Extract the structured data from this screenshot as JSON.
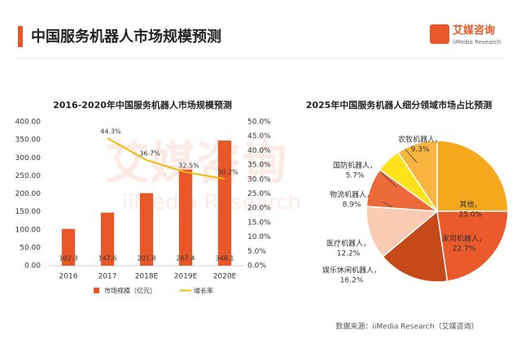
{
  "header": {
    "title": "中国服务机器人市场规模预测",
    "logo": "艾媒咨询",
    "logo_sub": "iiMedia Research"
  },
  "watermark": {
    "text": "艾媒咨询",
    "sub": "iiMedia Research"
  },
  "chart_data": [
    {
      "type": "bar",
      "title": "2016-2020年中国服务机器人市场规模预测",
      "categories": [
        "2016",
        "2017",
        "2018E",
        "2019E",
        "2020E"
      ],
      "series": [
        {
          "name": "市场规模（亿元）",
          "type": "bar",
          "color": "#e8572a",
          "values": [
            102.3,
            147.6,
            201.8,
            267.4,
            348.1
          ]
        },
        {
          "name": "增长率",
          "type": "line",
          "axis": "y2",
          "color": "#f5b800",
          "values": [
            null,
            44.3,
            36.7,
            32.5,
            30.2
          ],
          "value_labels": [
            null,
            "44.3%",
            "36.7%",
            "32.5%",
            "30.2%"
          ]
        }
      ],
      "ylim": [
        0,
        400
      ],
      "yticks": [
        {
          "value": 0,
          "label": "0.00"
        },
        {
          "value": 50,
          "label": "50.00"
        },
        {
          "value": 100,
          "label": "100.00"
        },
        {
          "value": 150,
          "label": "150.00"
        },
        {
          "value": 200,
          "label": "200.00"
        },
        {
          "value": 250,
          "label": "250.00"
        },
        {
          "value": 300,
          "label": "300.00"
        },
        {
          "value": 350,
          "label": "350.00"
        },
        {
          "value": 400,
          "label": "400.00"
        }
      ],
      "y2lim": [
        0,
        50
      ],
      "y2ticks": [
        {
          "value": 0,
          "label": "0.0%"
        },
        {
          "value": 5,
          "label": "5.0%"
        },
        {
          "value": 10,
          "label": "10.0%"
        },
        {
          "value": 15,
          "label": "15.0%"
        },
        {
          "value": 20,
          "label": "20.0%"
        },
        {
          "value": 25,
          "label": "25.0%"
        },
        {
          "value": 30,
          "label": "30.0%"
        },
        {
          "value": 35,
          "label": "35.0%"
        },
        {
          "value": 40,
          "label": "40.0%"
        },
        {
          "value": 45,
          "label": "45.0%"
        },
        {
          "value": 50,
          "label": "50.0%"
        }
      ],
      "legend": "bottom"
    },
    {
      "type": "pie",
      "title": "2025年中国服务机器人细分领域市场占比预测",
      "categories": [
        "其他，",
        "家用机器人，",
        "娱乐休闲机器人，",
        "医疗机器人，",
        "物流机器人，",
        "国防机器人，",
        "农牧机器人，"
      ],
      "values": [
        25.0,
        22.7,
        16.2,
        12.2,
        8.9,
        5.7,
        9.3
      ],
      "value_labels": [
        "25.0%",
        "22.7%",
        "16.2%",
        "12.2%",
        "8.9%",
        "5.7%",
        "9.3%"
      ],
      "colors": [
        "#f6a91c",
        "#ea5a2a",
        "#c44a1a",
        "#f8cbb2",
        "#ec6a3a",
        "#ffe21a",
        "#f8b640"
      ]
    }
  ],
  "source": "数据来源：iiMedia Research（艾媒咨询）"
}
